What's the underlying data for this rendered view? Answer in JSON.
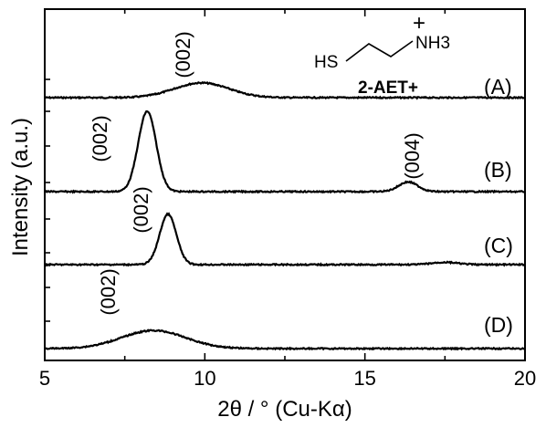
{
  "chart_data": {
    "type": "line",
    "xlabel": "2θ / ° (Cu-Kα)",
    "ylabel": "Intensity (a.u.)",
    "xlim": [
      5,
      20
    ],
    "xticks": [
      5,
      10,
      15,
      20
    ],
    "y_ticks_shown": false,
    "grid": false,
    "inset": {
      "molecule": "2-AET+",
      "groups": [
        "HS",
        "NH3",
        "+"
      ]
    },
    "series": [
      {
        "name": "(A)",
        "baseline": 0,
        "peaks": [
          {
            "label": "(002)",
            "center": 9.9,
            "height": 0.45,
            "width": 0.85
          }
        ]
      },
      {
        "name": "(B)",
        "baseline": 0,
        "peaks": [
          {
            "label": "(002)",
            "center": 8.2,
            "height": 1.0,
            "width": 0.28
          },
          {
            "label": "(004)",
            "center": 16.35,
            "height": 0.12,
            "width": 0.3
          }
        ]
      },
      {
        "name": "(C)",
        "baseline": 0,
        "peaks": [
          {
            "label": "(002)",
            "center": 8.85,
            "height": 0.65,
            "width": 0.26
          },
          {
            "label": "",
            "center": 17.5,
            "height": 0.03,
            "width": 0.4
          }
        ]
      },
      {
        "name": "(D)",
        "baseline": 0,
        "peaks": [
          {
            "label": "(002)",
            "center": 8.4,
            "height": 0.22,
            "width": 1.0
          }
        ]
      }
    ]
  }
}
